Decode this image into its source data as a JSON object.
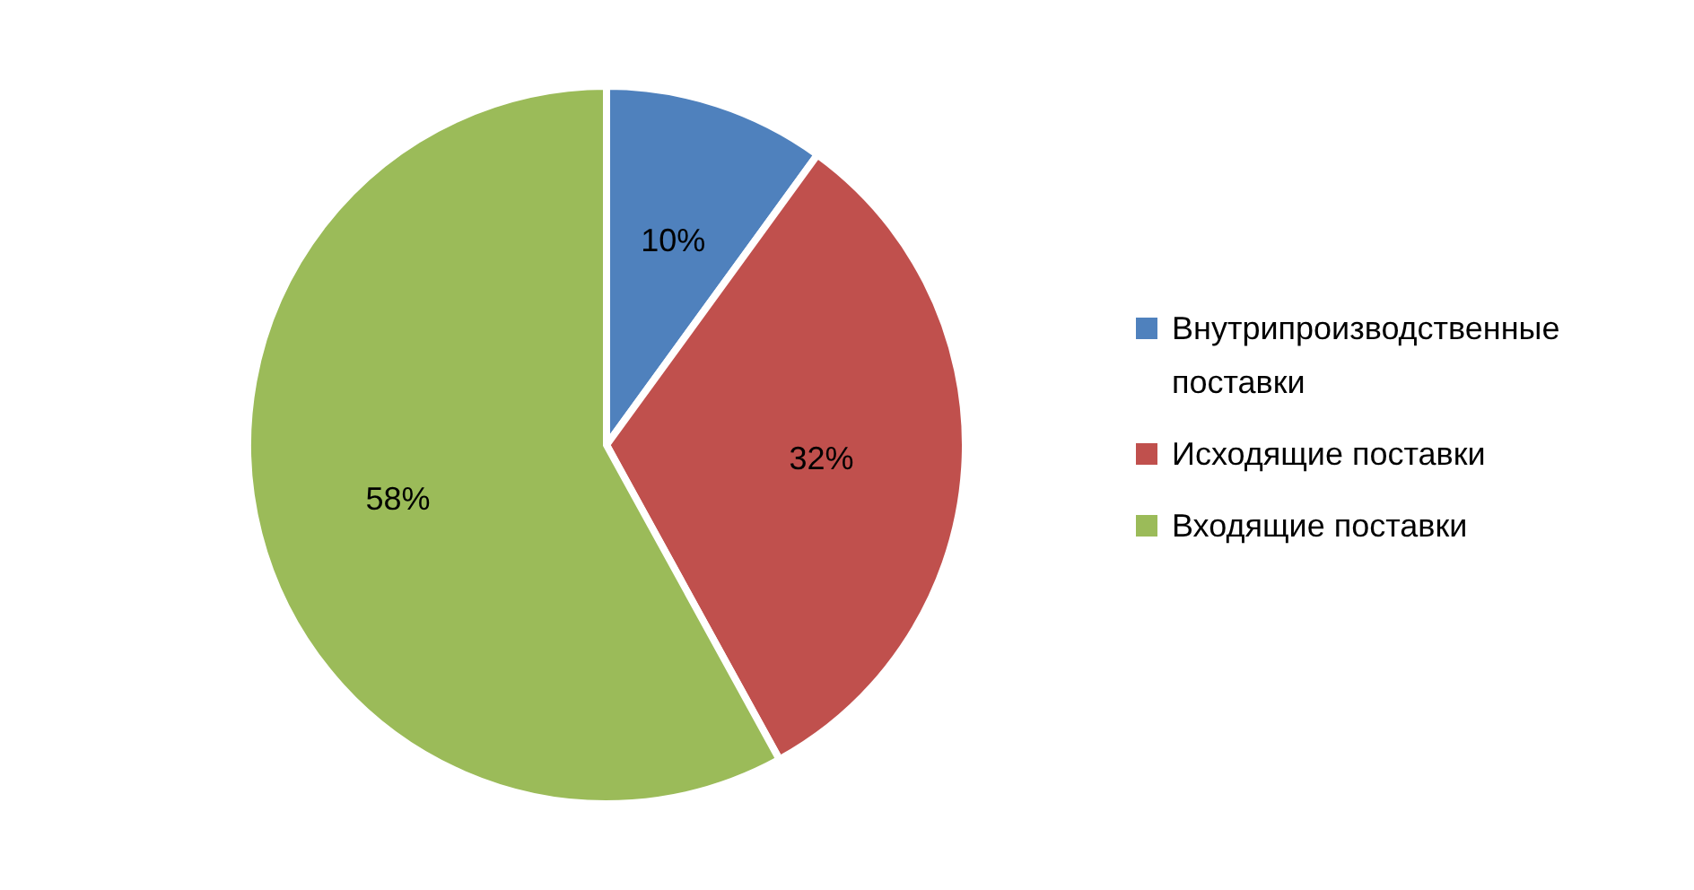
{
  "chart_data": {
    "type": "pie",
    "categories": [
      "Внутрипроизводственные поставки",
      "Исходящие поставки",
      "Входящие поставки"
    ],
    "values": [
      10,
      32,
      58
    ],
    "colors": [
      "#4f81bd",
      "#c0504d",
      "#9bbb59"
    ],
    "value_labels": [
      "10%",
      "32%",
      "58%"
    ],
    "legend": "right"
  }
}
